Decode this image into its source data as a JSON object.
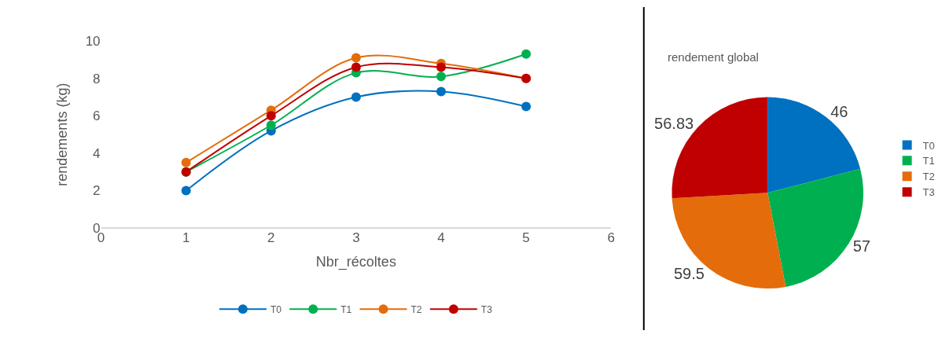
{
  "chart_data": [
    {
      "type": "line",
      "xlabel": "Nbr_récoltes",
      "ylabel": "rendements (kg)",
      "x": [
        1,
        2,
        3,
        4,
        5
      ],
      "xlim": [
        0,
        6
      ],
      "xticks": [
        0,
        1,
        2,
        3,
        4,
        5,
        6
      ],
      "ylim": [
        0,
        10
      ],
      "yticks": [
        0,
        2,
        4,
        6,
        8,
        10
      ],
      "legend": "bottom",
      "marker": "circle",
      "line_style": "solid",
      "series": [
        {
          "name": "T0",
          "color": "#0070c0",
          "values": [
            2,
            5.2,
            7,
            7.3,
            6.5
          ]
        },
        {
          "name": "T1",
          "color": "#00b050",
          "values": [
            3,
            5.5,
            8.3,
            8.1,
            9.3
          ]
        },
        {
          "name": "T2",
          "color": "#e46c0a",
          "values": [
            3.5,
            6.3,
            9.1,
            8.8,
            8
          ]
        },
        {
          "name": "T3",
          "color": "#c00000",
          "values": [
            3,
            6,
            8.6,
            8.6,
            8
          ]
        }
      ]
    },
    {
      "type": "pie",
      "title": "rendement global",
      "categories": [
        "T0",
        "T1",
        "T2",
        "T3"
      ],
      "values": [
        46,
        57,
        59.5,
        56.83
      ],
      "colors": [
        "#0070c0",
        "#00b050",
        "#e46c0a",
        "#c00000"
      ],
      "data_labels": true,
      "legend": "right"
    }
  ]
}
